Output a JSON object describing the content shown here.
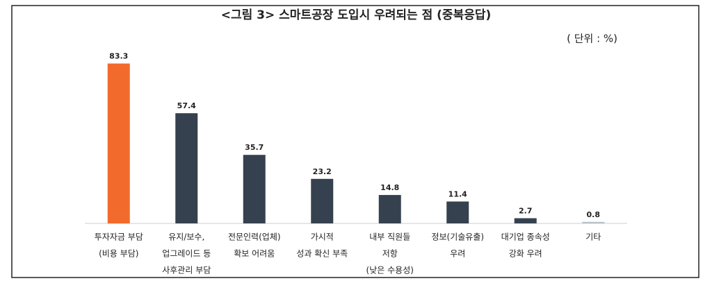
{
  "chart_data": {
    "type": "bar",
    "title": "<그림 3> 스마트공장 도입시 우려되는 점 (중복응답)",
    "subtitle": "( 단위 : %)",
    "categories": [
      [
        "투자자금 부담",
        "(비용 부담)"
      ],
      [
        "유지/보수,",
        "업그레이드 등",
        "사후관리 부담"
      ],
      [
        "전문인력(업체)",
        "확보 어려움"
      ],
      [
        "가시적",
        "성과 확신 부족"
      ],
      [
        "내부 직원들",
        "저항",
        "(낮은 수용성)"
      ],
      [
        "정보(기술유출)",
        "우려"
      ],
      [
        "대기업 종속성",
        "강화 우려"
      ],
      [
        "기타"
      ]
    ],
    "values": [
      83.3,
      57.4,
      35.7,
      23.2,
      14.8,
      11.4,
      2.7,
      0.8
    ],
    "colors": [
      "#f26b2c",
      "#36414f",
      "#36414f",
      "#36414f",
      "#36414f",
      "#36414f",
      "#36414f",
      "#b8c0c8"
    ],
    "ylim": [
      0,
      90
    ]
  }
}
